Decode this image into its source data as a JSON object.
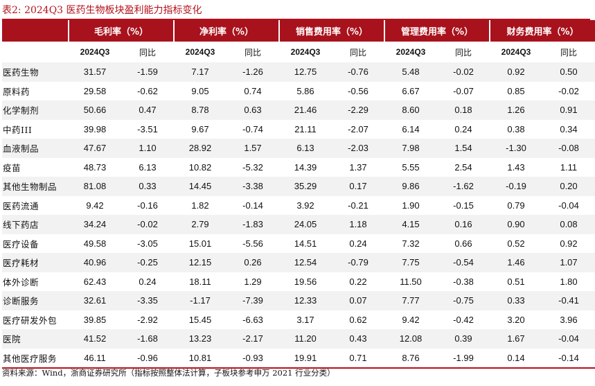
{
  "caption": "表2:  2024Q3 医药生物板块盈利能力指标变化",
  "headers": [
    "毛利率（%）",
    "净利率（%）",
    "销售费用率（%）",
    "管理费用率（%）",
    "财务费用率（%）"
  ],
  "subheaders": {
    "period": "2024Q3",
    "yoy": "同比"
  },
  "rows": [
    {
      "name": "医药生物",
      "values": [
        "31.57",
        "-1.59",
        "7.17",
        "-1.26",
        "12.75",
        "-0.76",
        "5.48",
        "-0.02",
        "0.92",
        "0.50"
      ]
    },
    {
      "name": "原料药",
      "values": [
        "29.58",
        "-0.62",
        "9.05",
        "0.74",
        "5.86",
        "-0.56",
        "6.67",
        "-0.07",
        "0.85",
        "-0.02"
      ]
    },
    {
      "name": "化学制剂",
      "values": [
        "50.66",
        "0.47",
        "8.78",
        "0.63",
        "21.46",
        "-2.29",
        "8.60",
        "0.18",
        "1.26",
        "0.91"
      ]
    },
    {
      "name": "中药III",
      "values": [
        "39.98",
        "-3.51",
        "9.67",
        "-0.74",
        "21.11",
        "-2.07",
        "6.14",
        "0.24",
        "0.38",
        "0.34"
      ]
    },
    {
      "name": "血液制品",
      "values": [
        "47.67",
        "1.10",
        "28.92",
        "1.57",
        "6.13",
        "-2.03",
        "7.98",
        "1.54",
        "-1.30",
        "-0.08"
      ]
    },
    {
      "name": "疫苗",
      "values": [
        "48.73",
        "6.13",
        "10.82",
        "-5.32",
        "14.39",
        "1.37",
        "5.55",
        "2.54",
        "1.43",
        "1.11"
      ]
    },
    {
      "name": "其他生物制品",
      "values": [
        "81.08",
        "0.33",
        "14.45",
        "-3.38",
        "35.29",
        "0.17",
        "9.86",
        "-1.62",
        "-0.19",
        "0.20"
      ]
    },
    {
      "name": "医药流通",
      "values": [
        "9.42",
        "-0.16",
        "1.82",
        "-0.14",
        "3.92",
        "-0.21",
        "1.90",
        "-0.15",
        "0.79",
        "-0.04"
      ]
    },
    {
      "name": "线下药店",
      "values": [
        "34.24",
        "-0.02",
        "2.79",
        "-1.83",
        "24.05",
        "1.18",
        "4.15",
        "0.16",
        "0.90",
        "0.08"
      ]
    },
    {
      "name": "医疗设备",
      "values": [
        "49.58",
        "-3.05",
        "15.01",
        "-5.56",
        "14.51",
        "0.24",
        "7.32",
        "0.66",
        "0.52",
        "0.92"
      ]
    },
    {
      "name": "医疗耗材",
      "values": [
        "40.96",
        "-0.25",
        "12.15",
        "0.26",
        "12.54",
        "-0.79",
        "7.75",
        "-0.54",
        "1.46",
        "1.07"
      ]
    },
    {
      "name": "体外诊断",
      "values": [
        "62.43",
        "0.24",
        "18.11",
        "1.29",
        "19.56",
        "0.22",
        "11.50",
        "-0.38",
        "0.51",
        "1.80"
      ]
    },
    {
      "name": "诊断服务",
      "values": [
        "32.61",
        "-3.35",
        "-1.17",
        "-7.39",
        "12.33",
        "0.07",
        "7.77",
        "-0.75",
        "0.33",
        "-0.41"
      ]
    },
    {
      "name": "医疗研发外包",
      "values": [
        "39.85",
        "-2.92",
        "15.45",
        "-6.63",
        "3.17",
        "0.62",
        "9.42",
        "-0.42",
        "3.20",
        "3.96"
      ]
    },
    {
      "name": "医院",
      "values": [
        "41.52",
        "-1.68",
        "13.23",
        "-2.17",
        "11.20",
        "0.43",
        "12.08",
        "0.39",
        "1.67",
        "-0.04"
      ]
    },
    {
      "name": "其他医疗服务",
      "values": [
        "46.11",
        "-0.96",
        "10.81",
        "-0.93",
        "19.91",
        "0.71",
        "8.76",
        "-1.99",
        "0.14",
        "-0.14"
      ]
    }
  ],
  "source": "资料来源：Wind，浙商证券研究所（指标按照整体法计算，子板块参考申万 2021 行业分类）",
  "colors": {
    "accent": "#b3121d",
    "header_bg": "#a8121c",
    "stripe": "#f2f2f2"
  }
}
